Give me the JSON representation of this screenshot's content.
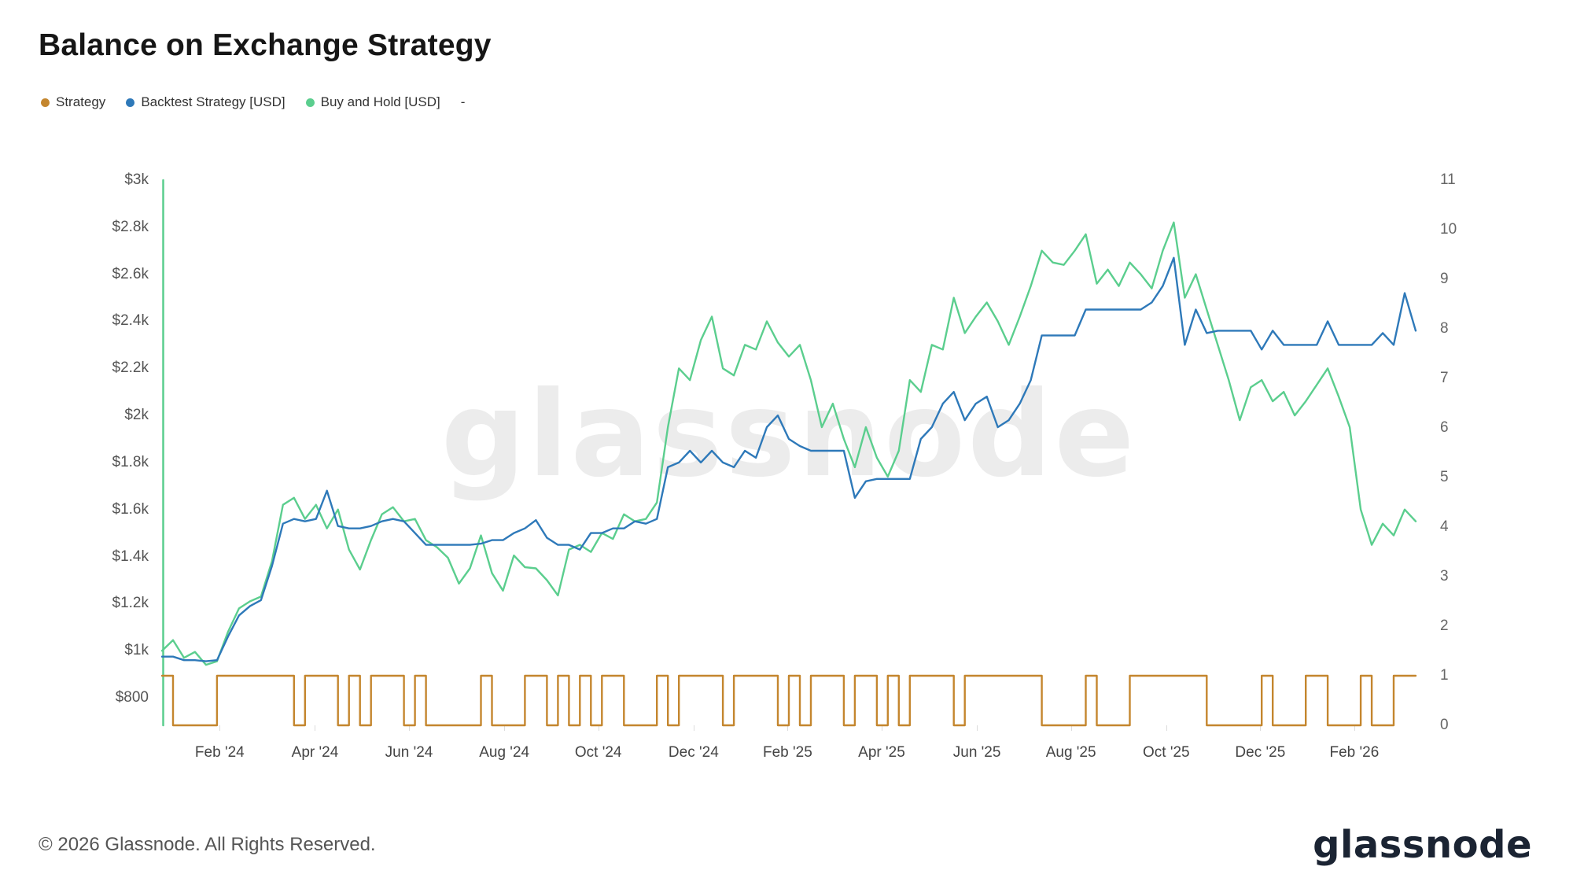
{
  "page": {
    "title": "Balance on Exchange Strategy",
    "watermark": "glassnode",
    "footer": "© 2026 Glassnode. All Rights Reserved.",
    "brand": "glassnode"
  },
  "legend": [
    {
      "label": "Strategy",
      "color": "#c4862e"
    },
    {
      "label": "Backtest Strategy [USD]",
      "color": "#2e79b9"
    },
    {
      "label": "Buy and Hold [USD]",
      "color": "#5bce8e"
    },
    {
      "label": "-",
      "color": null
    }
  ],
  "chart_data": {
    "type": "line",
    "title": "Balance on Exchange Strategy",
    "x_range": [
      "Jan 2024",
      "Mar 2026"
    ],
    "grid": false,
    "legend_position": "top-left",
    "left_axis": {
      "unit": "USD",
      "max": 3000,
      "plot_min": 683,
      "ticks": [
        "$3k",
        "$2.8k",
        "$2.6k",
        "$2.4k",
        "$2.2k",
        "$2k",
        "$1.8k",
        "$1.6k",
        "$1.4k",
        "$1.2k",
        "$1k",
        "$800"
      ],
      "values": [
        3000,
        2800,
        2600,
        2400,
        2200,
        2000,
        1800,
        1600,
        1400,
        1200,
        1000,
        800
      ]
    },
    "right_axis": {
      "unit": "signal",
      "min": 0,
      "max": 11,
      "ticks": [
        "11",
        "10",
        "9",
        "8",
        "7",
        "6",
        "5",
        "4",
        "3",
        "2",
        "1",
        "0"
      ],
      "values": [
        11,
        10,
        9,
        8,
        7,
        6,
        5,
        4,
        3,
        2,
        1,
        0
      ]
    },
    "x_ticks": {
      "labels": [
        "Feb '24",
        "Apr '24",
        "Jun '24",
        "Aug '24",
        "Oct '24",
        "Dec '24",
        "Feb '25",
        "Apr '25",
        "Jun '25",
        "Aug '25",
        "Oct '25",
        "Dec '25",
        "Feb '26"
      ],
      "fracs": [
        0.046,
        0.122,
        0.197,
        0.273,
        0.348,
        0.424,
        0.499,
        0.574,
        0.65,
        0.725,
        0.801,
        0.876,
        0.951
      ]
    },
    "sampling": "weekly",
    "series": [
      {
        "name": "Strategy",
        "axis": "right",
        "style": "step",
        "color": "#c4862e",
        "values": [
          1,
          0,
          0,
          0,
          0,
          1,
          1,
          1,
          1,
          1,
          1,
          1,
          0,
          1,
          1,
          1,
          0,
          1,
          0,
          1,
          1,
          1,
          0,
          1,
          0,
          0,
          0,
          0,
          0,
          1,
          0,
          0,
          0,
          1,
          1,
          0,
          1,
          0,
          1,
          0,
          1,
          1,
          0,
          0,
          0,
          1,
          0,
          1,
          1,
          1,
          1,
          0,
          1,
          1,
          1,
          1,
          0,
          1,
          0,
          1,
          1,
          1,
          0,
          1,
          1,
          0,
          1,
          0,
          1,
          1,
          1,
          1,
          0,
          1,
          1,
          1,
          1,
          1,
          1,
          1,
          0,
          0,
          0,
          0,
          1,
          0,
          0,
          0,
          1,
          1,
          1,
          1,
          1,
          1,
          1,
          0,
          0,
          0,
          0,
          0,
          1,
          0,
          0,
          0,
          1,
          1,
          0,
          0,
          0,
          1,
          0,
          0,
          1,
          1,
          1
        ]
      },
      {
        "name": "Backtest Strategy [USD]",
        "axis": "left",
        "style": "line",
        "color": "#2e79b9",
        "values": [
          975,
          975,
          960,
          960,
          955,
          960,
          1060,
          1150,
          1190,
          1215,
          1360,
          1540,
          1560,
          1550,
          1560,
          1680,
          1530,
          1520,
          1520,
          1530,
          1550,
          1560,
          1550,
          1500,
          1450,
          1450,
          1450,
          1450,
          1450,
          1455,
          1470,
          1470,
          1500,
          1520,
          1555,
          1480,
          1450,
          1450,
          1430,
          1500,
          1500,
          1520,
          1520,
          1550,
          1540,
          1560,
          1780,
          1800,
          1850,
          1800,
          1850,
          1800,
          1780,
          1850,
          1820,
          1950,
          2000,
          1900,
          1870,
          1850,
          1850,
          1850,
          1850,
          1650,
          1720,
          1730,
          1730,
          1730,
          1730,
          1900,
          1950,
          2050,
          2100,
          1980,
          2050,
          2080,
          1950,
          1980,
          2050,
          2150,
          2340,
          2340,
          2340,
          2340,
          2450,
          2450,
          2450,
          2450,
          2450,
          2450,
          2480,
          2550,
          2670,
          2300,
          2450,
          2350,
          2360,
          2360,
          2360,
          2360,
          2280,
          2360,
          2300,
          2300,
          2300,
          2300,
          2400,
          2300,
          2300,
          2300,
          2300,
          2350,
          2300,
          2520,
          2360
        ]
      },
      {
        "name": "Buy and Hold [USD]",
        "axis": "left",
        "style": "line",
        "color": "#5bce8e",
        "values": [
          1000,
          1045,
          970,
          995,
          940,
          955,
          1080,
          1180,
          1210,
          1230,
          1380,
          1620,
          1650,
          1560,
          1620,
          1520,
          1600,
          1430,
          1345,
          1470,
          1580,
          1610,
          1550,
          1560,
          1470,
          1440,
          1395,
          1285,
          1350,
          1490,
          1330,
          1255,
          1405,
          1355,
          1350,
          1300,
          1235,
          1430,
          1450,
          1420,
          1500,
          1475,
          1580,
          1550,
          1560,
          1630,
          1950,
          2200,
          2150,
          2320,
          2420,
          2200,
          2170,
          2300,
          2280,
          2400,
          2310,
          2250,
          2300,
          2150,
          1950,
          2050,
          1900,
          1780,
          1950,
          1820,
          1740,
          1850,
          2150,
          2100,
          2300,
          2280,
          2500,
          2350,
          2420,
          2480,
          2400,
          2300,
          2420,
          2550,
          2700,
          2650,
          2640,
          2700,
          2770,
          2560,
          2620,
          2550,
          2650,
          2600,
          2540,
          2700,
          2820,
          2500,
          2600,
          2450,
          2300,
          2150,
          1980,
          2120,
          2150,
          2060,
          2100,
          2000,
          2060,
          2130,
          2200,
          2080,
          1950,
          1600,
          1450,
          1540,
          1490,
          1600,
          1550
        ]
      }
    ],
    "start_marker": {
      "type": "vertical-line",
      "color": "#5bce8e",
      "x_frac": 0
    }
  }
}
